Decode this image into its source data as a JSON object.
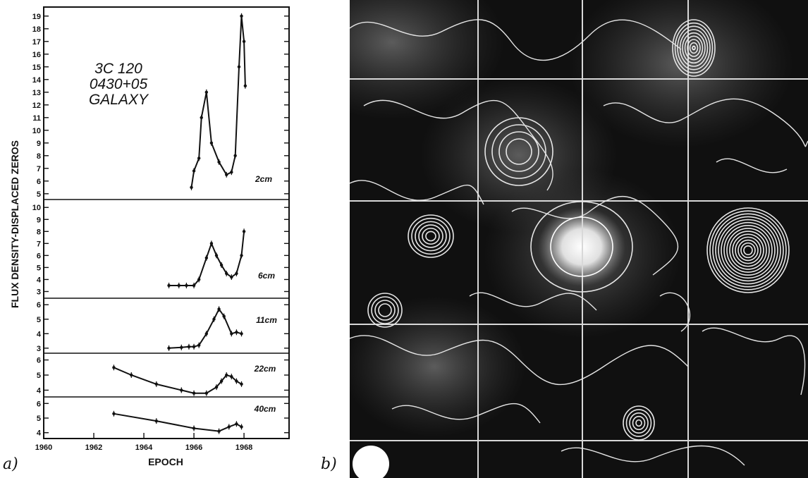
{
  "panel_labels": {
    "a": "a)",
    "b": "b)"
  },
  "chart_data": [
    {
      "type": "line",
      "annotation": [
        "3C 120",
        "0430+05",
        "GALAXY"
      ],
      "xlabel": "EPOCH",
      "ylabel": "FLUX DENSITY-DISPLACED ZEROS",
      "xlim": [
        1960,
        1969.8
      ],
      "x_ticks": [
        1960,
        1962,
        1964,
        1966,
        1968
      ],
      "x_tick_labels": [
        "1960",
        "1962",
        "1964",
        "1966",
        "1968"
      ],
      "grid": false,
      "series": [
        {
          "name": "2cm",
          "ylim": [
            4.6,
            19.6
          ],
          "y_ticks": [
            5,
            6,
            7,
            8,
            9,
            10,
            11,
            12,
            13,
            14,
            15,
            16,
            17,
            18,
            19
          ],
          "x": [
            1965.9,
            1966.0,
            1966.2,
            1966.3,
            1966.5,
            1966.7,
            1967.0,
            1967.3,
            1967.5,
            1967.65,
            1967.8,
            1967.9,
            1968.0,
            1968.05
          ],
          "y": [
            5.5,
            6.8,
            7.8,
            11.0,
            13.0,
            9.0,
            7.5,
            6.5,
            6.7,
            8.0,
            15.0,
            19.0,
            17.0,
            13.5
          ]
        },
        {
          "name": "6cm",
          "ylim": [
            2.5,
            10.6
          ],
          "y_ticks": [
            3,
            4,
            5,
            6,
            7,
            8,
            9,
            10
          ],
          "x": [
            1965.0,
            1965.4,
            1965.7,
            1966.0,
            1966.2,
            1966.5,
            1966.7,
            1966.9,
            1967.1,
            1967.3,
            1967.5,
            1967.7,
            1967.9,
            1968.0
          ],
          "y": [
            3.5,
            3.5,
            3.5,
            3.5,
            4.0,
            5.8,
            7.0,
            6.0,
            5.2,
            4.5,
            4.2,
            4.5,
            6.0,
            8.0
          ]
        },
        {
          "name": "11cm",
          "ylim": [
            2.7,
            6.4
          ],
          "y_ticks": [
            3,
            4,
            5,
            6
          ],
          "x": [
            1965.0,
            1965.5,
            1965.8,
            1966.0,
            1966.2,
            1966.5,
            1966.8,
            1967.0,
            1967.2,
            1967.5,
            1967.7,
            1967.9
          ],
          "y": [
            3.0,
            3.05,
            3.1,
            3.1,
            3.2,
            4.0,
            5.0,
            5.7,
            5.2,
            4.0,
            4.1,
            4.0
          ]
        },
        {
          "name": "22cm",
          "ylim": [
            3.6,
            6.4
          ],
          "y_ticks": [
            4,
            5,
            6
          ],
          "x": [
            1962.8,
            1963.5,
            1964.5,
            1965.5,
            1966.0,
            1966.5,
            1966.9,
            1967.1,
            1967.3,
            1967.5,
            1967.7,
            1967.9
          ],
          "y": [
            5.5,
            5.0,
            4.4,
            4.0,
            3.8,
            3.8,
            4.2,
            4.6,
            5.0,
            4.9,
            4.6,
            4.4
          ]
        },
        {
          "name": "40cm",
          "ylim": [
            3.6,
            6.4
          ],
          "y_ticks": [
            4,
            5,
            6
          ],
          "x": [
            1962.8,
            1964.5,
            1966.0,
            1967.0,
            1967.4,
            1967.7,
            1967.9
          ],
          "y": [
            5.3,
            4.8,
            4.3,
            4.1,
            4.4,
            4.6,
            4.4
          ]
        }
      ]
    },
    {
      "type": "contour map"
    }
  ]
}
